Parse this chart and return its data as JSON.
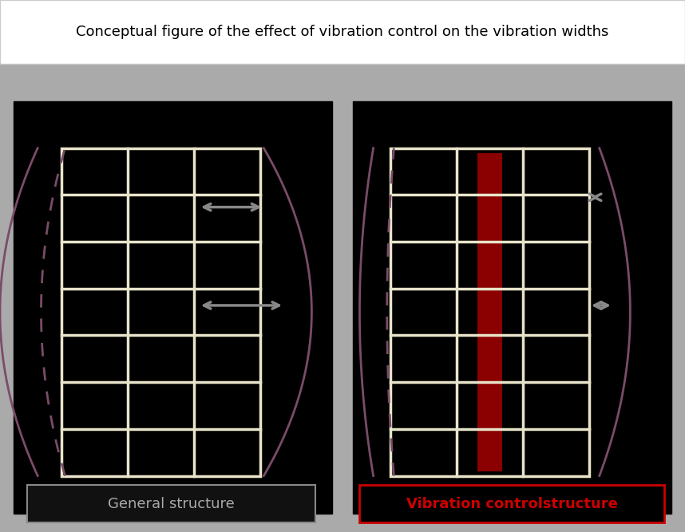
{
  "title": "Conceptual figure of the effect of vibration control on the vibration widths",
  "title_fontsize": 13,
  "bg_color": "#888888",
  "panel_bg": "#000000",
  "frame_color": "#E8E4CA",
  "curve_color": "#7B4B6A",
  "dashed_color": "#7B4B6A",
  "red_bar_color": "#8B0000",
  "arrow_color": "#888888",
  "label1": "General structure",
  "label2": "Vibration controlstructure",
  "label1_color": "#aaaaaa",
  "label2_color": "#cc0000",
  "label_box1_edge": "#888888",
  "label_box2_edge": "#cc0000"
}
